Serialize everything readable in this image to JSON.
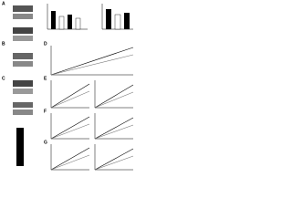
{
  "figure": {
    "panels": [
      {
        "label": "A"
      },
      {
        "label": "B"
      },
      {
        "label": "C"
      },
      {
        "label": "D"
      },
      {
        "label": "E"
      },
      {
        "label": "F"
      },
      {
        "label": "G"
      }
    ]
  }
}
